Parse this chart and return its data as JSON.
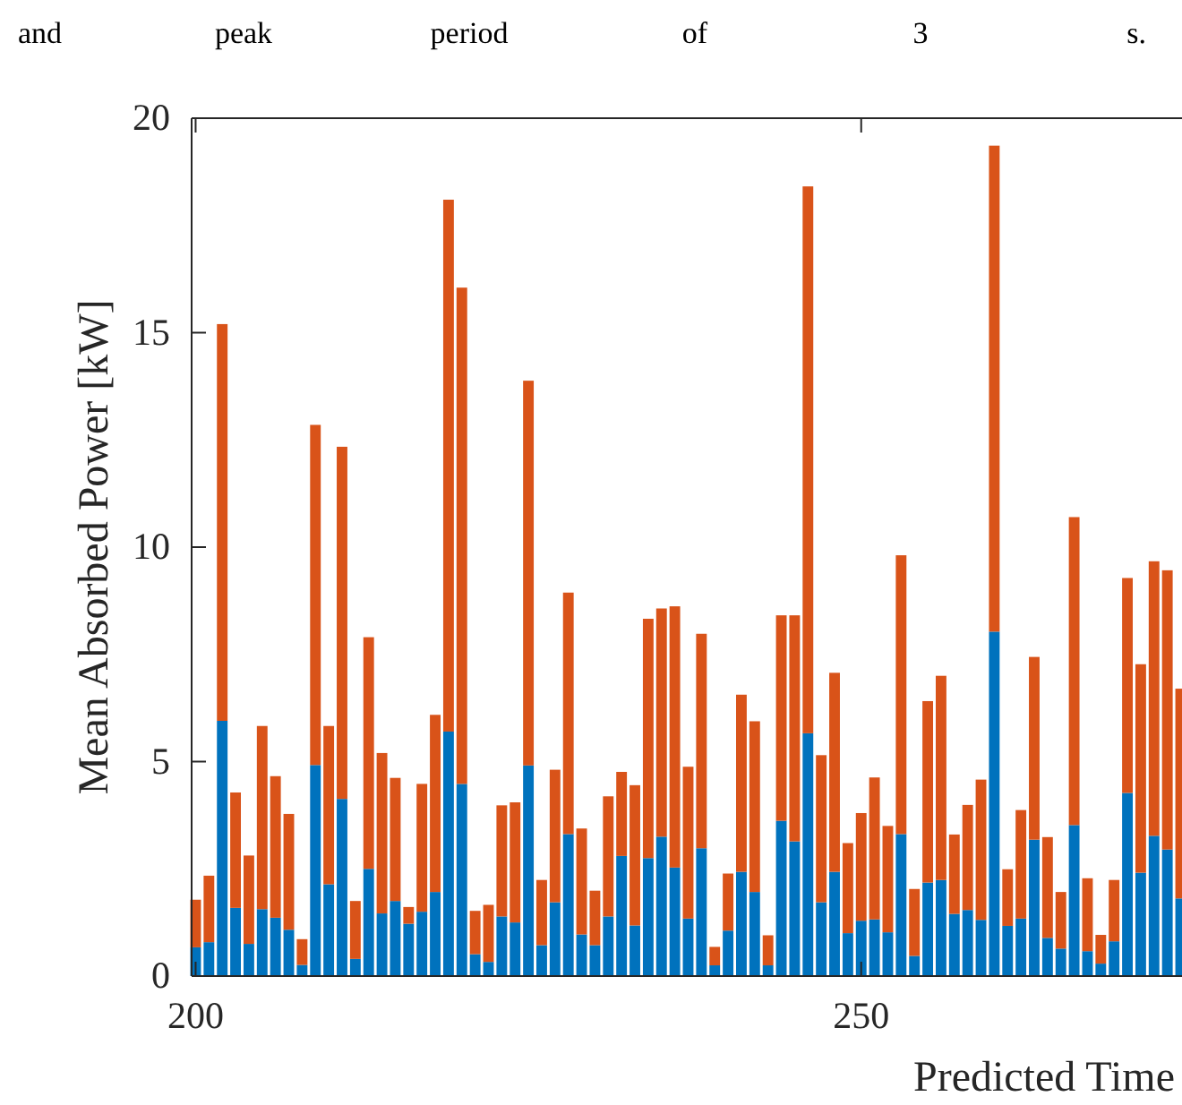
{
  "chart_data": {
    "type": "bar",
    "stacked": true,
    "xlabel": "Predicted Time",
    "ylabel": "Mean Absorbed Power [kW]",
    "annotations": [
      "and peak period of 3 s."
    ],
    "x": [
      200,
      201,
      202,
      203,
      204,
      205,
      206,
      207,
      208,
      209,
      210,
      211,
      212,
      213,
      214,
      215,
      216,
      217,
      218,
      219,
      220,
      221,
      222,
      223,
      224,
      225,
      226,
      227,
      228,
      229,
      230,
      231,
      232,
      233,
      234,
      235,
      236,
      237,
      238,
      239,
      240,
      241,
      242,
      243,
      244,
      245,
      246,
      247,
      248,
      249,
      250,
      251,
      252,
      253,
      254,
      255,
      256,
      257,
      258,
      259,
      260,
      261,
      262,
      263,
      264,
      265,
      266,
      267,
      268,
      269,
      270,
      271,
      272,
      273,
      274
    ],
    "series": [
      {
        "color": "#0072bd",
        "values": [
          0.67,
          0.79,
          5.95,
          1.59,
          0.75,
          1.56,
          1.36,
          1.08,
          0.26,
          4.92,
          2.14,
          4.13,
          0.4,
          2.5,
          1.46,
          1.75,
          1.22,
          1.5,
          1.96,
          5.7,
          4.48,
          0.51,
          0.33,
          1.39,
          1.25,
          4.91,
          0.72,
          1.72,
          3.31,
          0.97,
          0.72,
          1.39,
          2.8,
          1.18,
          2.75,
          3.25,
          2.53,
          1.34,
          2.98,
          0.25,
          1.06,
          2.43,
          1.96,
          0.25,
          3.62,
          3.14,
          5.66,
          1.72,
          2.43,
          1.0,
          1.29,
          1.32,
          1.02,
          3.31,
          0.47,
          2.18,
          2.24,
          1.45,
          1.54,
          1.31,
          8.03,
          1.17,
          1.34,
          3.18,
          0.89,
          0.64,
          3.52,
          0.58,
          0.29,
          0.81,
          4.27,
          2.41,
          3.27,
          2.95,
          1.81
        ]
      },
      {
        "color": "#d95319",
        "values": [
          1.11,
          1.55,
          9.25,
          2.69,
          2.06,
          4.27,
          3.3,
          2.7,
          0.6,
          7.93,
          3.69,
          8.21,
          1.35,
          5.4,
          3.74,
          2.87,
          0.39,
          2.98,
          4.13,
          12.4,
          11.57,
          1.01,
          1.33,
          2.59,
          2.8,
          8.97,
          1.52,
          3.09,
          5.63,
          2.47,
          1.27,
          2.8,
          1.96,
          3.27,
          5.58,
          5.32,
          6.09,
          3.54,
          5.0,
          0.43,
          1.33,
          4.13,
          3.98,
          0.7,
          4.79,
          5.27,
          12.75,
          3.43,
          4.64,
          2.1,
          2.51,
          3.31,
          2.48,
          6.5,
          1.56,
          4.23,
          4.76,
          1.85,
          2.45,
          3.27,
          11.33,
          1.32,
          2.53,
          4.26,
          2.35,
          1.32,
          7.18,
          1.7,
          0.67,
          1.43,
          5.01,
          4.86,
          6.4,
          6.51,
          4.89
        ]
      }
    ],
    "xlim": [
      199.7,
      274.1
    ],
    "xticks": [
      200,
      250
    ],
    "ylim": [
      0,
      20
    ],
    "yticks": [
      0,
      5,
      10,
      15,
      20
    ],
    "grid": false
  }
}
